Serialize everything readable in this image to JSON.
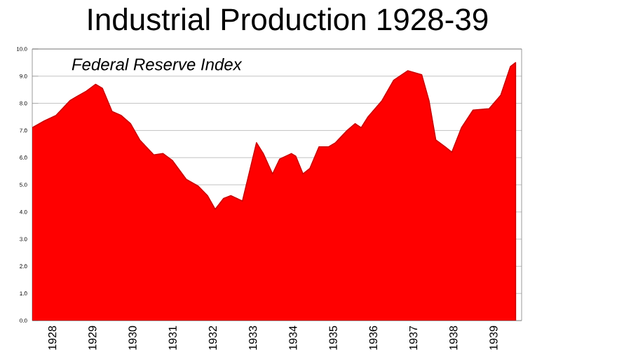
{
  "chart_data": {
    "type": "area",
    "title": "Industrial Production 1928-39",
    "annotations": [
      "Federal Reserve Index"
    ],
    "x": [
      1928.0,
      1928.3,
      1928.59,
      1928.94,
      1929.11,
      1929.35,
      1929.58,
      1929.75,
      1929.99,
      1930.22,
      1930.45,
      1930.68,
      1931.03,
      1931.26,
      1931.49,
      1931.84,
      1932.14,
      1932.37,
      1932.56,
      1932.77,
      1932.95,
      1933.24,
      1933.59,
      1933.76,
      1933.99,
      1934.17,
      1934.46,
      1934.57,
      1934.75,
      1934.92,
      1935.15,
      1935.39,
      1935.56,
      1935.85,
      1936.05,
      1936.2,
      1936.37,
      1936.72,
      1937.01,
      1937.36,
      1937.71,
      1937.89,
      1938.06,
      1938.29,
      1938.46,
      1938.7,
      1938.99,
      1939.39,
      1939.68,
      1939.92,
      1940.05
    ],
    "values": [
      7.1,
      7.35,
      7.55,
      8.1,
      8.25,
      8.45,
      8.7,
      8.55,
      7.7,
      7.55,
      7.25,
      6.65,
      6.1,
      6.15,
      5.9,
      5.2,
      4.95,
      4.6,
      4.1,
      4.5,
      4.6,
      4.4,
      6.55,
      6.15,
      5.4,
      5.95,
      6.15,
      6.05,
      5.4,
      5.6,
      6.4,
      6.4,
      6.55,
      7.0,
      7.25,
      7.1,
      7.5,
      8.1,
      8.85,
      9.2,
      9.05,
      8.1,
      6.65,
      6.4,
      6.2,
      7.1,
      7.75,
      7.8,
      8.3,
      9.35,
      9.5
    ],
    "color": "#ff0000",
    "xlim": [
      1928,
      1940.2
    ],
    "ylim": [
      0,
      10
    ],
    "xticks": [
      {
        "value": 1928.5,
        "label": "1928"
      },
      {
        "value": 1929.5,
        "label": "1929"
      },
      {
        "value": 1930.5,
        "label": "1930"
      },
      {
        "value": 1931.5,
        "label": "1931"
      },
      {
        "value": 1932.5,
        "label": "1932"
      },
      {
        "value": 1933.5,
        "label": "1933"
      },
      {
        "value": 1934.5,
        "label": "1934"
      },
      {
        "value": 1935.5,
        "label": "1935"
      },
      {
        "value": 1936.5,
        "label": "1936"
      },
      {
        "value": 1937.5,
        "label": "1937"
      },
      {
        "value": 1938.5,
        "label": "1938"
      },
      {
        "value": 1939.5,
        "label": "1939"
      }
    ],
    "yticks": [
      {
        "value": 0,
        "label": "0.0"
      },
      {
        "value": 1,
        "label": "1.0"
      },
      {
        "value": 2,
        "label": "2.0"
      },
      {
        "value": 3,
        "label": "3.0"
      },
      {
        "value": 4,
        "label": "4.0"
      },
      {
        "value": 5,
        "label": "5.0"
      },
      {
        "value": 6,
        "label": "6.0"
      },
      {
        "value": 7,
        "label": "7.0"
      },
      {
        "value": 8,
        "label": "8.0"
      },
      {
        "value": 9,
        "label": "9.0"
      },
      {
        "value": 10,
        "label": "10.0"
      }
    ],
    "grid": "y"
  }
}
